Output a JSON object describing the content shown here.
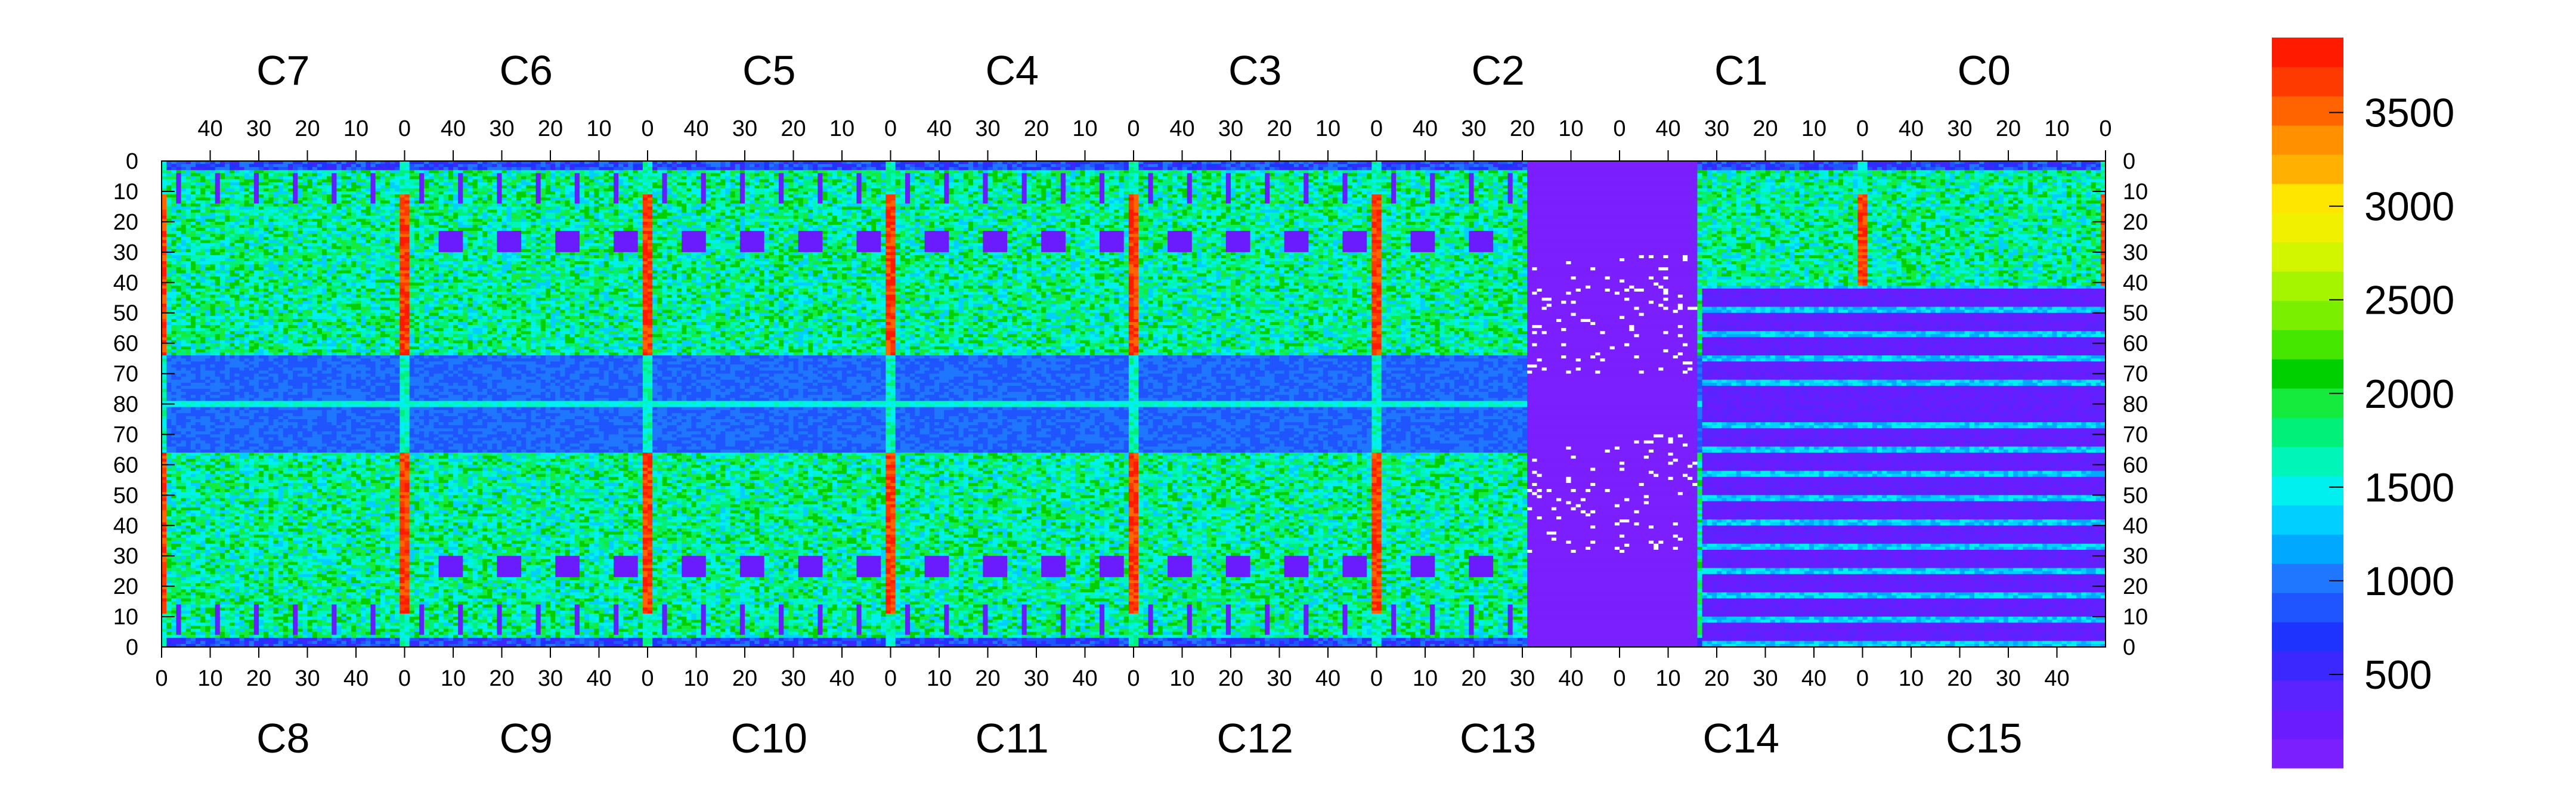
{
  "chart_data": {
    "type": "heatmap",
    "title": "",
    "xlabel": "",
    "ylabel": "",
    "top_chips": [
      "C7",
      "C6",
      "C5",
      "C4",
      "C3",
      "C2",
      "C1",
      "C0"
    ],
    "bottom_chips": [
      "C8",
      "C9",
      "C10",
      "C11",
      "C12",
      "C13",
      "C14",
      "C15"
    ],
    "top_x_ticks": [
      "40",
      "30",
      "20",
      "10",
      "0"
    ],
    "bottom_x_ticks": [
      "0",
      "10",
      "20",
      "30",
      "40"
    ],
    "y_ticks": [
      "0",
      "10",
      "20",
      "30",
      "40",
      "50",
      "60",
      "70",
      "80",
      "70",
      "60",
      "50",
      "40",
      "30",
      "20",
      "10",
      "0"
    ],
    "colorbar": {
      "range": [
        0,
        3900
      ],
      "ticks": [
        "500",
        "1000",
        "1500",
        "2000",
        "2500",
        "3000",
        "3500"
      ],
      "colors": [
        "#7b1fff",
        "#6a1cff",
        "#5a23ff",
        "#3b28ff",
        "#1f33ff",
        "#1f55ff",
        "#1f77ff",
        "#00a8ff",
        "#00cfff",
        "#00f0f0",
        "#00f5b8",
        "#00f07a",
        "#14eb3c",
        "#00d000",
        "#45e600",
        "#7af000",
        "#a5f500",
        "#d2f500",
        "#f0f000",
        "#ffe600",
        "#ffb000",
        "#ff9000",
        "#ff6400",
        "#ff3a00",
        "#ff1a00"
      ]
    },
    "grid": false
  }
}
